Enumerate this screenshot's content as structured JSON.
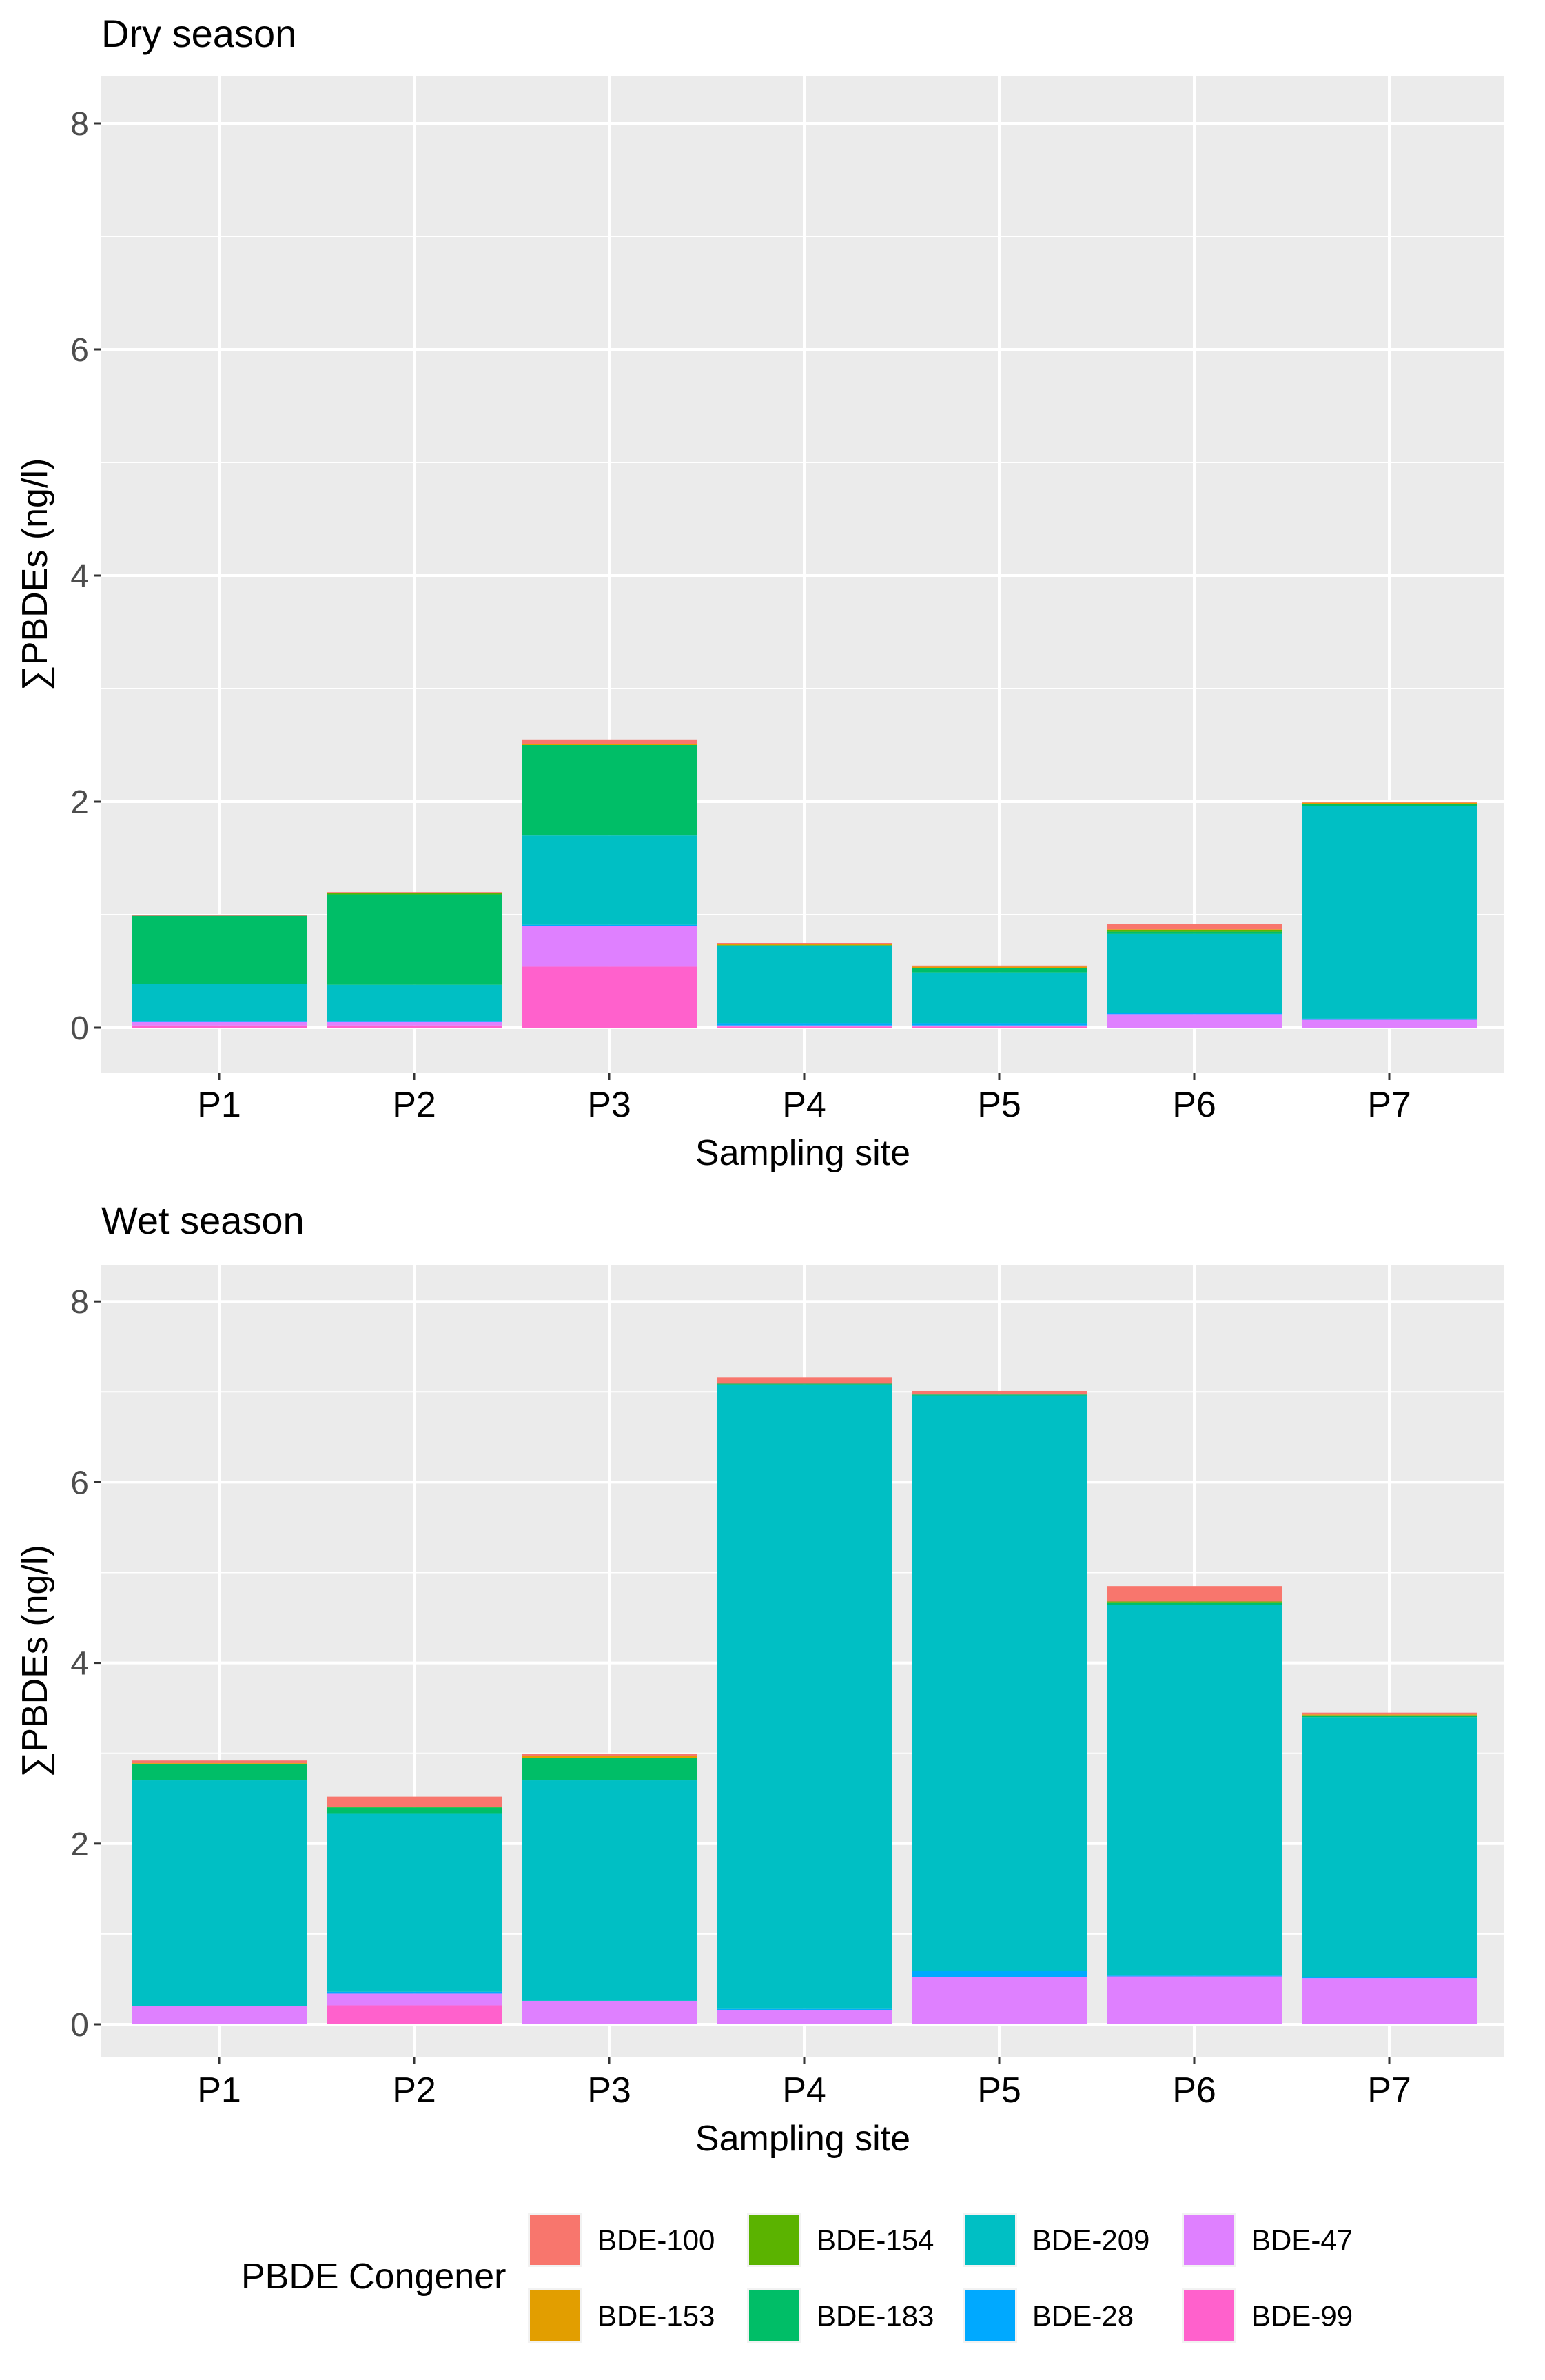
{
  "chart_data": [
    {
      "type": "bar",
      "stacked": true,
      "title": "Dry season",
      "xlabel": "Sampling site",
      "ylabel": "∑PBDEs (ng/l)",
      "ylim": [
        0,
        8.5
      ],
      "yticks": [
        0,
        2,
        4,
        6,
        8
      ],
      "categories": [
        "P1",
        "P2",
        "P3",
        "P4",
        "P5",
        "P6",
        "P7"
      ],
      "series": [
        {
          "name": "BDE-99",
          "values": [
            0.02,
            0.02,
            0.54,
            0.01,
            0.01,
            0.0,
            0.0
          ]
        },
        {
          "name": "BDE-47",
          "values": [
            0.03,
            0.03,
            0.36,
            0.01,
            0.01,
            0.12,
            0.07
          ]
        },
        {
          "name": "BDE-28",
          "values": [
            0.01,
            0.01,
            0.01,
            0.02,
            0.02,
            0.01,
            0.01
          ]
        },
        {
          "name": "BDE-209",
          "values": [
            0.33,
            0.32,
            0.79,
            0.68,
            0.45,
            0.7,
            1.88
          ]
        },
        {
          "name": "BDE-183",
          "values": [
            0.6,
            0.8,
            0.8,
            0.01,
            0.04,
            0.02,
            0.02
          ]
        },
        {
          "name": "BDE-154",
          "values": [
            0.0,
            0.01,
            0.0,
            0.0,
            0.0,
            0.01,
            0.0
          ]
        },
        {
          "name": "BDE-153",
          "values": [
            0.0,
            0.0,
            0.01,
            0.01,
            0.01,
            0.01,
            0.01
          ]
        },
        {
          "name": "BDE-100",
          "values": [
            0.01,
            0.01,
            0.04,
            0.01,
            0.01,
            0.05,
            0.01
          ]
        }
      ]
    },
    {
      "type": "bar",
      "stacked": true,
      "title": "Wet season",
      "xlabel": "Sampling site",
      "ylabel": "∑PBDEs (ng/l)",
      "ylim": [
        0,
        8.3
      ],
      "yticks": [
        0,
        2,
        4,
        6,
        8
      ],
      "categories": [
        "P1",
        "P2",
        "P3",
        "P4",
        "P5",
        "P6",
        "P7"
      ],
      "series": [
        {
          "name": "BDE-99",
          "values": [
            0.0,
            0.21,
            0.0,
            0.0,
            0.0,
            0.0,
            0.0
          ]
        },
        {
          "name": "BDE-47",
          "values": [
            0.2,
            0.13,
            0.26,
            0.16,
            0.52,
            0.53,
            0.51
          ]
        },
        {
          "name": "BDE-28",
          "values": [
            0.0,
            0.02,
            0.0,
            0.01,
            0.07,
            0.01,
            0.01
          ]
        },
        {
          "name": "BDE-209",
          "values": [
            2.5,
            1.97,
            2.44,
            6.91,
            6.37,
            4.1,
            2.88
          ]
        },
        {
          "name": "BDE-183",
          "values": [
            0.18,
            0.07,
            0.25,
            0.01,
            0.01,
            0.03,
            0.02
          ]
        },
        {
          "name": "BDE-154",
          "values": [
            0.0,
            0.01,
            0.0,
            0.0,
            0.0,
            0.01,
            0.0
          ]
        },
        {
          "name": "BDE-153",
          "values": [
            0.01,
            0.0,
            0.02,
            0.0,
            0.0,
            0.0,
            0.01
          ]
        },
        {
          "name": "BDE-100",
          "values": [
            0.03,
            0.11,
            0.02,
            0.07,
            0.04,
            0.17,
            0.02
          ]
        }
      ]
    }
  ],
  "legend": {
    "title": "PBDE Congener",
    "position": "bottom",
    "items": [
      {
        "name": "BDE-100",
        "color": "#F8766D"
      },
      {
        "name": "BDE-153",
        "color": "#E29E00"
      },
      {
        "name": "BDE-154",
        "color": "#5BB300"
      },
      {
        "name": "BDE-183",
        "color": "#00BE67"
      },
      {
        "name": "BDE-209",
        "color": "#00BFC4"
      },
      {
        "name": "BDE-28",
        "color": "#00A9FF"
      },
      {
        "name": "BDE-47",
        "color": "#DF80FF"
      },
      {
        "name": "BDE-99",
        "color": "#FF61CC"
      }
    ]
  }
}
